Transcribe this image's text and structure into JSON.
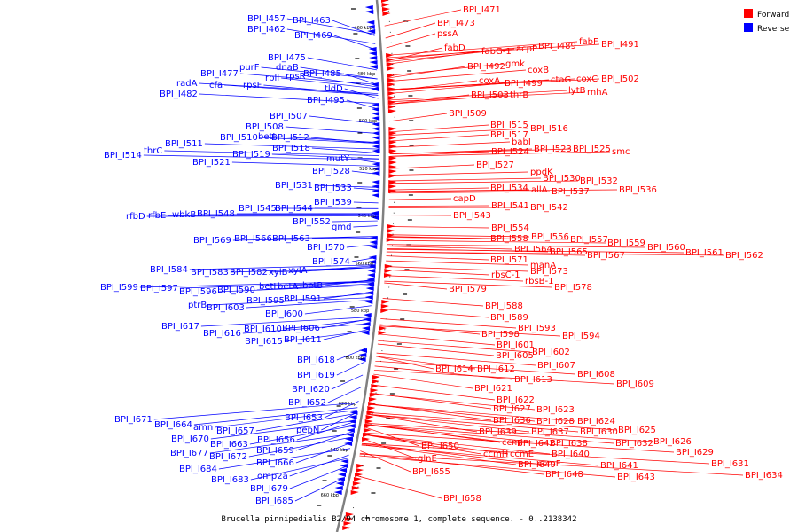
{
  "caption": "Brucella pinnipedialis B2/94 chromosome 1, complete sequence. - 0..2138342",
  "legend": {
    "forward": "Forward",
    "reverse": "Reverse"
  },
  "colors": {
    "forward": "#ff0000",
    "reverse": "#0000ff",
    "backbone": "#808080"
  },
  "ticks": [
    "460 kbp",
    "480 kbp",
    "500 kbp",
    "520 kbp",
    "540 kbp",
    "560 kbp",
    "580 kbp",
    "600 kbp",
    "620 kbp",
    "640 kbp",
    "660 kbp"
  ],
  "forward_genes": [
    "BPI_I471",
    "BPI_I473",
    "pssA",
    "fabD",
    "fabG-1",
    "acpP",
    "BPI_I489",
    "fabF",
    "BPI_I491",
    "BPI_I492",
    "gmk",
    "coxB",
    "coxA",
    "BPI_I499",
    "ctaG",
    "coxC",
    "BPI_I502",
    "lytB",
    "rnhA",
    "BPI_I503",
    "thrB",
    "BPI_I509",
    "BPI_I515",
    "BPI_I516",
    "BPI_I517",
    "babI",
    "BPI_I523",
    "BPI_I525",
    "smc",
    "BPI_I524",
    "BPI_I527",
    "ppdK",
    "BPI_I530",
    "BPI_I532",
    "BPI_I534",
    "allA",
    "BPI_I537",
    "BPI_I536",
    "capD",
    "BPI_I541",
    "BPI_I542",
    "BPI_I543",
    "BPI_I554",
    "BPI_I556",
    "BPI_I558",
    "BPI_I557",
    "BPI_I559",
    "BPI_I560",
    "BPI_I564",
    "BPI_I561",
    "BPI_I565",
    "BPI_I567",
    "BPI_I562",
    "BPI_I571",
    "manA",
    "BPI_I573",
    "rbsC-1",
    "rbsB-1",
    "BPI_I578",
    "BPI_I579",
    "BPI_I588",
    "BPI_I589",
    "BPI_I593",
    "BPI_I598",
    "BPI_I594",
    "BPI_I601",
    "BPI_I602",
    "BPI_I605",
    "BPI_I607",
    "BPI_I614",
    "BPI_I612",
    "BPI_I608",
    "BPI_I613",
    "BPI_I609",
    "BPI_I621",
    "BPI_I622",
    "BPI_I627",
    "BPI_I623",
    "BPI_I636",
    "BPI_I628",
    "BPI_I624",
    "BPI_I639",
    "BPI_I637",
    "BPI_I630",
    "BPI_I625",
    "ccmI",
    "BPI_I642",
    "BPI_I638",
    "BPI_I632",
    "BPI_I626",
    "BPI_I650",
    "BPI_I640",
    "BPI_I629",
    "ccmH",
    "ccmE",
    "glnE",
    "BPI_I649",
    "ccmF",
    "BPI_I641",
    "BPI_I631",
    "BPI_I648",
    "BPI_I643",
    "BPI_I634",
    "BPI_I655",
    "BPI_I658"
  ],
  "reverse_genes": [
    "BPI_I457",
    "BPI_I463",
    "BPI_I462",
    "BPI_I469",
    "BPI_I475",
    "purF",
    "dnaB",
    "BPI_I477",
    "cfa",
    "rpsF",
    "rplI",
    "rpsR",
    "BPI_I485",
    "radA",
    "BPI_I482",
    "tldD",
    "BPI_I495",
    "BPI_I507",
    "BPI_I508",
    "BPI_I510",
    "betI",
    "BPI_I512",
    "BPI_I511",
    "BPI_I518",
    "thrC",
    "BPI_I514",
    "BPI_I519",
    "mutY",
    "BPI_I521",
    "BPI_I528",
    "BPI_I531",
    "BPI_I533",
    "BPI_I539",
    "BPI_I545",
    "BPI_I544",
    "rfbD",
    "rfbE",
    "wbkB",
    "BPI_I548",
    "BPI_I552",
    "gmd",
    "BPI_I569",
    "BPI_I566",
    "BPI_I563",
    "BPI_I570",
    "BPI_I574",
    "BPI_I584",
    "BPI_I583",
    "BPI_I582",
    "xylB",
    "xylA",
    "betI",
    "betA",
    "betB",
    "BPI_I599",
    "BPI_I597",
    "BPI_I596",
    "BPI_I590",
    "BPI_I595",
    "BPI_I591",
    "ptrB",
    "BPI_I603",
    "BPI_I600",
    "BPI_I617",
    "BPI_I610",
    "BPI_I606",
    "BPI_I616",
    "BPI_I615",
    "BPI_I611",
    "BPI_I618",
    "BPI_I619",
    "BPI_I620",
    "BPI_I652",
    "BPI_I653",
    "BPI_I671",
    "BPI_I664",
    "amn",
    "pepN",
    "BPI_I657",
    "BPI_I670",
    "BPI_I656",
    "BPI_I663",
    "BPI_I659",
    "BPI_I677",
    "BPI_I672",
    "BPI_I666",
    "BPI_I684",
    "omp2a",
    "BPI_I683",
    "BPI_I679",
    "BPI_I685"
  ]
}
